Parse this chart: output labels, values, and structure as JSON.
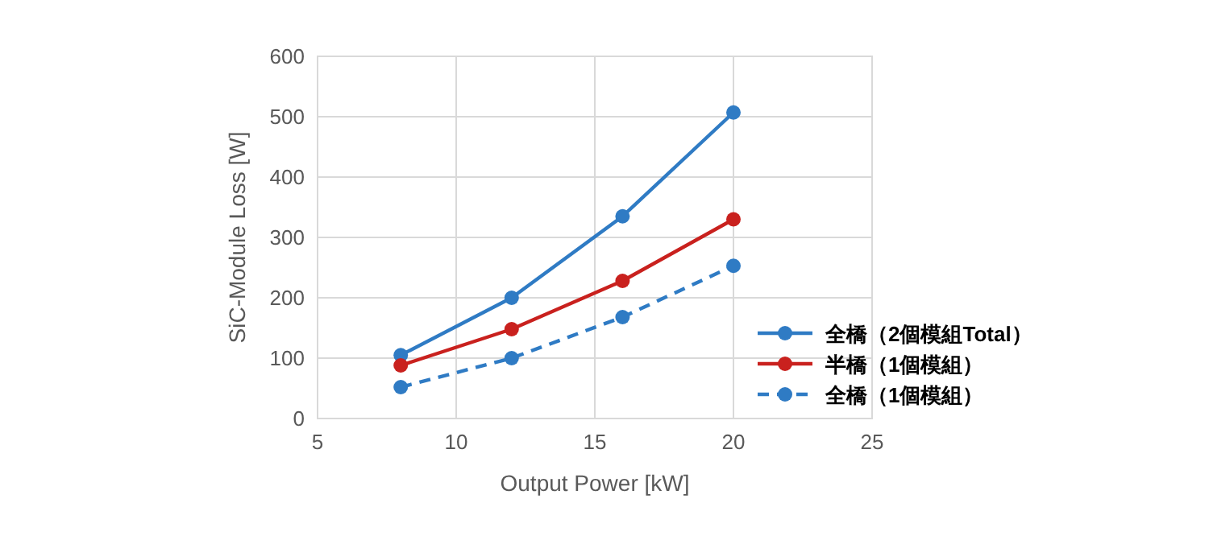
{
  "chart_data": {
    "type": "line",
    "xlabel": "Output Power [kW]",
    "ylabel": "SiC-Module Loss [W]",
    "xlim": [
      5,
      25
    ],
    "xticks": [
      5,
      10,
      15,
      20,
      25
    ],
    "ylim": [
      0,
      600
    ],
    "yticks": [
      0,
      100,
      200,
      300,
      400,
      500,
      600
    ],
    "grid": true,
    "legend": "bottom right",
    "marker": "circle",
    "series": [
      {
        "name": "全橋（2個模組Total）",
        "color": "#2f7bc4",
        "x": [
          8,
          12,
          16,
          20
        ],
        "values": [
          105,
          200,
          335,
          507
        ],
        "line_style": "solid"
      },
      {
        "name": "半橋（1個模組）",
        "color": "#c9211e",
        "x": [
          8,
          12,
          16,
          20
        ],
        "values": [
          88,
          148,
          228,
          330
        ],
        "line_style": "solid"
      },
      {
        "name": "全橋（1個模組）",
        "color": "#2f7bc4",
        "x": [
          8,
          12,
          16,
          20
        ],
        "values": [
          52,
          100,
          168,
          253
        ],
        "line_style": "dashed"
      }
    ]
  }
}
